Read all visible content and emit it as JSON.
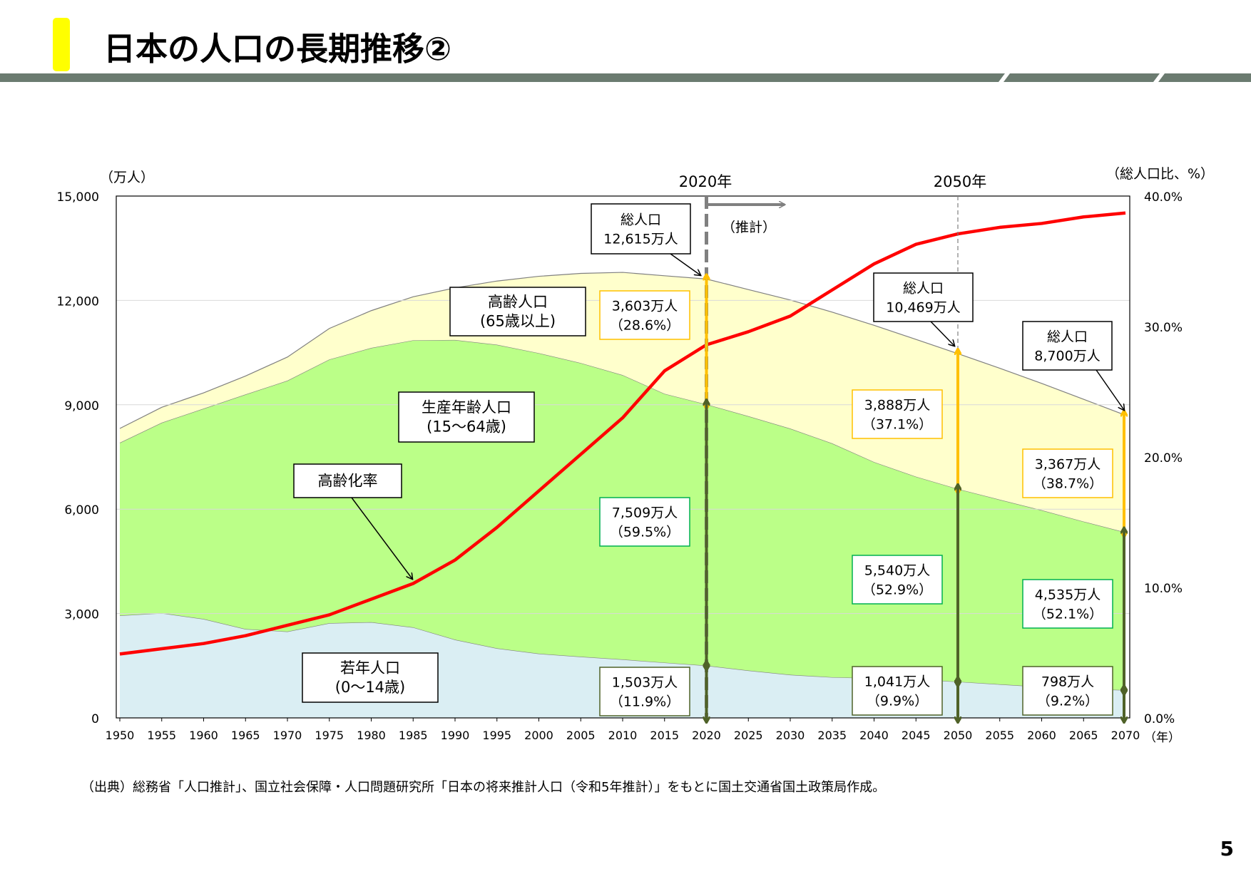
{
  "header": {
    "title": "日本の人口の長期推移②",
    "accent_color": "#ffff00",
    "band_color": "#6b7b70"
  },
  "source_note": "（出典）総務省「人口推計」、国立社会保障・人口問題研究所「日本の将来推計人口（令和5年推計）」をもとに国土交通省国土政策局作成。",
  "page_number": "5",
  "chart_data": {
    "type": "area",
    "stacked": true,
    "ylabel_left": "（万人）",
    "ylabel_right": "（総人口比、%）",
    "xlabel": "（年）",
    "ylim": [
      0,
      15000
    ],
    "ylim_right": [
      0,
      40
    ],
    "yticks": [
      "0",
      "3,000",
      "6,000",
      "9,000",
      "12,000",
      "15,000"
    ],
    "yticks_right": [
      "0.0%",
      "10.0%",
      "20.0%",
      "30.0%",
      "40.0%"
    ],
    "grid": true,
    "x": [
      1950,
      1955,
      1960,
      1965,
      1970,
      1975,
      1980,
      1985,
      1990,
      1995,
      2000,
      2005,
      2010,
      2015,
      2020,
      2025,
      2030,
      2035,
      2040,
      2045,
      2050,
      2055,
      2060,
      2065,
      2070
    ],
    "series": [
      {
        "key": "young",
        "color": "#daeef3",
        "values": [
          2943,
          3012,
          2843,
          2553,
          2482,
          2722,
          2751,
          2603,
          2249,
          2001,
          1847,
          1759,
          1680,
          1589,
          1503,
          1363,
          1240,
          1169,
          1142,
          1103,
          1041,
          966,
          893,
          835,
          798
        ]
      },
      {
        "key": "working",
        "color": "#bbff88",
        "values": [
          4966,
          5473,
          6047,
          6744,
          7212,
          7581,
          7883,
          8251,
          8614,
          8726,
          8638,
          8442,
          8174,
          7728,
          7509,
          7310,
          7076,
          6722,
          6213,
          5832,
          5540,
          5307,
          5078,
          4809,
          4535
        ]
      },
      {
        "key": "elderly",
        "color": "#ffffcc",
        "values": [
          411,
          443,
          452,
          531,
          678,
          891,
          1072,
          1251,
          1498,
          1830,
          2208,
          2576,
          2952,
          3392,
          3603,
          3639,
          3696,
          3773,
          3929,
          3945,
          3888,
          3778,
          3644,
          3515,
          3367
        ]
      }
    ],
    "aging_rate": {
      "color": "#ff0000",
      "axis": "right",
      "values": [
        4.9,
        5.3,
        5.7,
        6.3,
        7.1,
        7.9,
        9.1,
        10.3,
        12.1,
        14.6,
        17.4,
        20.2,
        23.0,
        26.6,
        28.6,
        29.6,
        30.8,
        32.8,
        34.8,
        36.3,
        37.1,
        37.6,
        37.9,
        38.4,
        38.7
      ]
    },
    "markers": [
      {
        "year": 2020,
        "label": "2020年"
      },
      {
        "year": 2050,
        "label": "2050年"
      }
    ],
    "projection_label": "（推計）",
    "series_labels": {
      "elderly": [
        "高齢人口",
        "(65歳以上)"
      ],
      "working": [
        "生産年齢人口",
        "(15～64歳)"
      ],
      "aging": [
        "高齢化率"
      ],
      "young": [
        "若年人口",
        "(0～14歳)"
      ]
    },
    "annotations": {
      "y2020": {
        "total": [
          "総人口",
          "12,615万人"
        ],
        "elderly": [
          "3,603万人",
          "（28.6%）"
        ],
        "working": [
          "7,509万人",
          "（59.5%）"
        ],
        "young": [
          "1,503万人",
          "（11.9%）"
        ]
      },
      "y2050": {
        "total": [
          "総人口",
          "10,469万人"
        ],
        "elderly": [
          "3,888万人",
          "（37.1%）"
        ],
        "working": [
          "5,540万人",
          "（52.9%）"
        ],
        "young": [
          "1,041万人",
          "（9.9%）"
        ]
      },
      "y2070": {
        "total": [
          "総人口",
          "8,700万人"
        ],
        "elderly": [
          "3,367万人",
          "（38.7%）"
        ],
        "working": [
          "4,535万人",
          "（52.1%）"
        ],
        "young": [
          "798万人",
          "（9.2%）"
        ]
      }
    },
    "arrow_colors": {
      "elderly": "#ffc000",
      "working": "#4f6228"
    },
    "box_colors": {
      "elderly": "#ffc000",
      "working": "#00b050",
      "young": "#4f6228"
    }
  }
}
